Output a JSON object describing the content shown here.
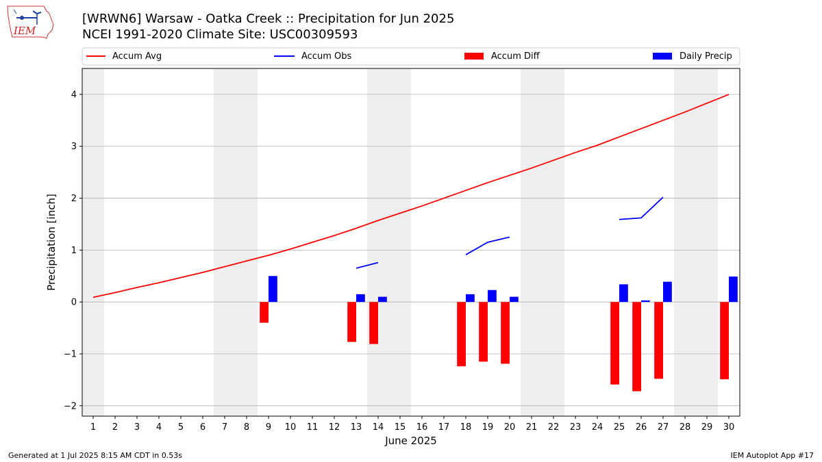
{
  "title_line1": "[WRWN6] Warsaw - Oatka Creek :: Precipitation for Jun 2025",
  "title_line2": "NCEI 1991-2020 Climate Site: USC00309593",
  "logo_text": "IEM",
  "footer_left": "Generated at 1 Jul 2025 8:15 AM CDT in 0.53s",
  "footer_right": "IEM Autoplot App #17",
  "colors": {
    "accum_avg": "#ff0000",
    "accum_obs": "#0000ff",
    "accum_diff": "#ff0000",
    "daily_precip": "#0000ff",
    "weekend": "#eeeeee",
    "grid": "#b0b0b0"
  },
  "chart_data": {
    "type": "bar",
    "xlabel": "June 2025",
    "ylabel": "Precipitation [inch]",
    "xlim": [
      1,
      30
    ],
    "ylim": [
      -2.2,
      4.5
    ],
    "x_ticks": [
      1,
      2,
      3,
      4,
      5,
      6,
      7,
      8,
      9,
      10,
      11,
      12,
      13,
      14,
      15,
      16,
      17,
      18,
      19,
      20,
      21,
      22,
      23,
      24,
      25,
      26,
      27,
      28,
      29,
      30
    ],
    "y_ticks": [
      -2,
      -1,
      0,
      1,
      2,
      3,
      4
    ],
    "grid": "horizontal",
    "weekend_days": [
      1,
      7,
      8,
      14,
      15,
      21,
      22,
      28,
      29
    ],
    "legend_placement": "top",
    "legend": [
      "Accum Avg",
      "Accum Obs",
      "Accum Diff",
      "Daily Precip"
    ],
    "accum_avg": {
      "x": [
        1,
        2,
        3,
        4,
        5,
        6,
        7,
        8,
        9,
        10,
        11,
        12,
        13,
        14,
        15,
        16,
        17,
        18,
        19,
        20,
        21,
        22,
        23,
        24,
        25,
        26,
        27,
        28,
        29,
        30
      ],
      "y": [
        0.09,
        0.18,
        0.28,
        0.37,
        0.47,
        0.57,
        0.68,
        0.79,
        0.9,
        1.02,
        1.15,
        1.28,
        1.42,
        1.57,
        1.71,
        1.85,
        2.0,
        2.15,
        2.3,
        2.44,
        2.58,
        2.73,
        2.88,
        3.02,
        3.18,
        3.34,
        3.5,
        3.66,
        3.83,
        4.0
      ]
    },
    "accum_obs": [
      {
        "x": [
          13,
          14
        ],
        "y": [
          0.65,
          0.76
        ]
      },
      {
        "x": [
          18,
          19,
          20
        ],
        "y": [
          0.91,
          1.15,
          1.25
        ]
      },
      {
        "x": [
          25,
          26,
          27
        ],
        "y": [
          1.59,
          1.62,
          2.02
        ]
      }
    ],
    "accum_diff": {
      "x": [
        9,
        13,
        14,
        18,
        19,
        20,
        25,
        26,
        27,
        30
      ],
      "y": [
        -0.4,
        -0.77,
        -0.81,
        -1.24,
        -1.15,
        -1.19,
        -1.59,
        -1.72,
        -1.48,
        -1.49
      ]
    },
    "daily_precip": {
      "x": [
        9,
        13,
        14,
        18,
        19,
        20,
        25,
        26,
        27,
        30
      ],
      "y": [
        0.5,
        0.15,
        0.1,
        0.15,
        0.23,
        0.1,
        0.34,
        0.03,
        0.39,
        0.49
      ]
    }
  }
}
